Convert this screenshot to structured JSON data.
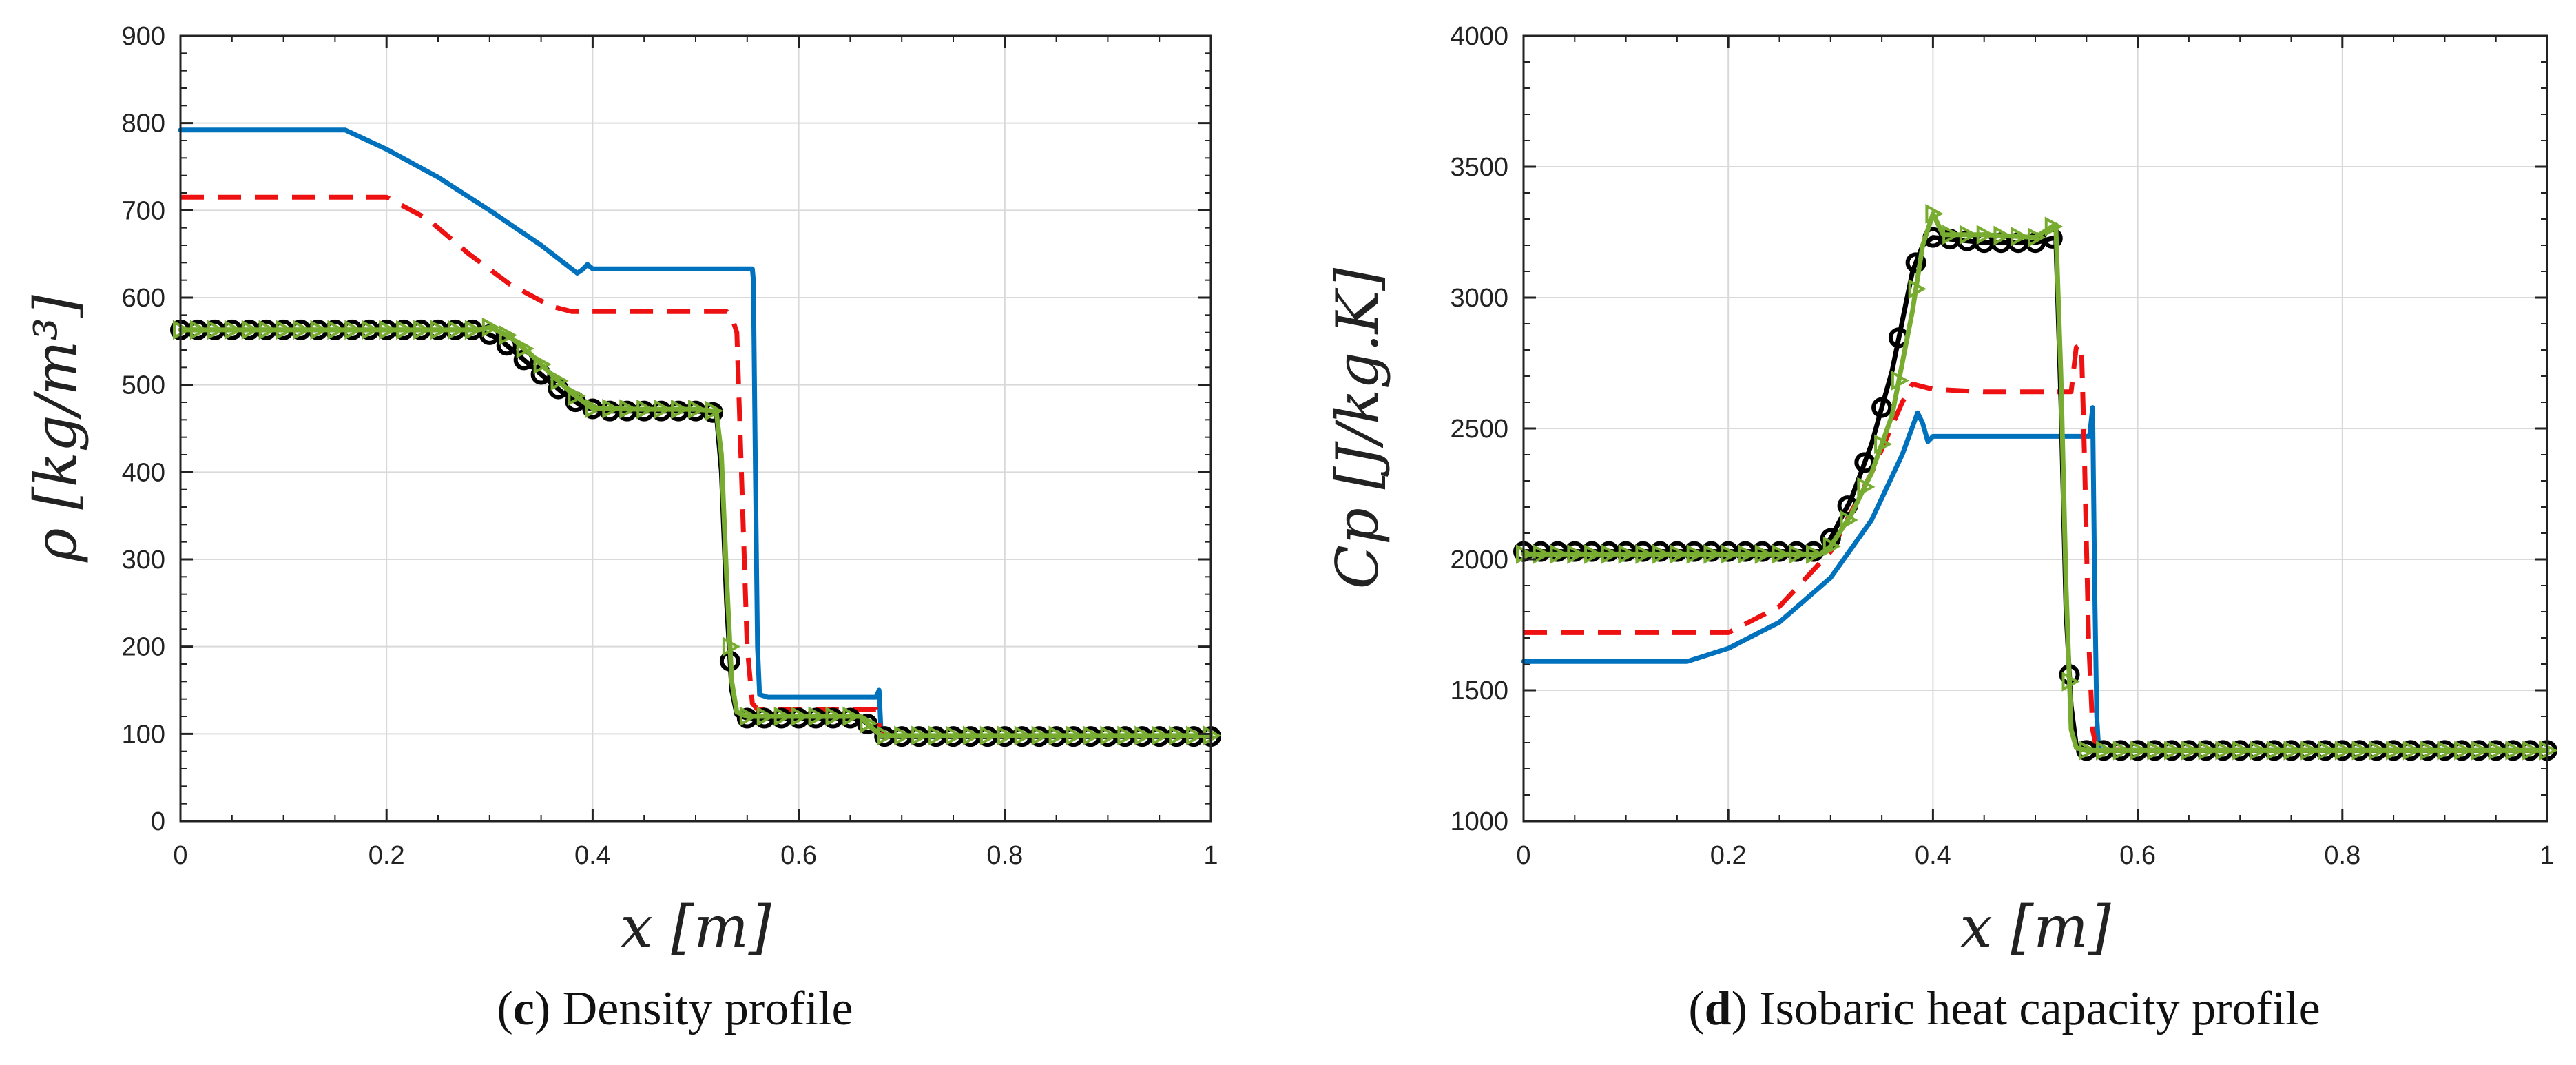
{
  "panels": [
    {
      "caption": {
        "open": "(",
        "letter": "c",
        "close": ")",
        "text": "Density profile"
      },
      "chart_data": {
        "type": "line",
        "title": "",
        "xlabel": "x [m]",
        "ylabel": "ρ [kg/m³]",
        "xlim": [
          0,
          1
        ],
        "ylim": [
          0,
          900
        ],
        "xticks": [
          0,
          0.2,
          0.4,
          0.6,
          0.8,
          1
        ],
        "xtick_labels": [
          "0",
          "0.2",
          "0.4",
          "0.6",
          "0.8",
          "1"
        ],
        "yticks": [
          0,
          100,
          200,
          300,
          400,
          500,
          600,
          700,
          800,
          900
        ],
        "ytick_labels": [
          "0",
          "100",
          "200",
          "300",
          "400",
          "500",
          "600",
          "700",
          "800",
          "900"
        ],
        "grid": true,
        "series": [
          {
            "name": "blue solid",
            "color": "#0072BD",
            "style": "solid",
            "x": [
              0,
              0.16,
              0.2,
              0.25,
              0.3,
              0.35,
              0.385,
              0.39,
              0.395,
              0.4,
              0.45,
              0.5,
              0.555,
              0.556,
              0.558,
              0.56,
              0.562,
              0.57,
              0.6,
              0.65,
              0.675,
              0.678,
              0.68,
              0.685,
              0.7,
              0.8,
              0.9,
              1
            ],
            "y": [
              792,
              792,
              770,
              738,
              700,
              660,
              628,
              632,
              638,
              633,
              633,
              633,
              633,
              620,
              400,
              200,
              145,
              142,
              142,
              142,
              142,
              150,
              100,
              97,
              97,
              97,
              97,
              97
            ]
          },
          {
            "name": "red dashed",
            "color": "#EE1111",
            "style": "dashed",
            "x": [
              0,
              0.2,
              0.24,
              0.28,
              0.32,
              0.36,
              0.38,
              0.4,
              0.45,
              0.5,
              0.53,
              0.535,
              0.54,
              0.545,
              0.55,
              0.555,
              0.56,
              0.6,
              0.65,
              0.675,
              0.68,
              0.7,
              0.8,
              0.9,
              1
            ],
            "y": [
              715,
              715,
              690,
              650,
              615,
              590,
              584,
              584,
              584,
              584,
              584,
              578,
              560,
              380,
              200,
              135,
              128,
              128,
              128,
              128,
              99,
              97,
              97,
              97,
              97
            ]
          },
          {
            "name": "black o",
            "color": "#000000",
            "style": "solid",
            "marker": "circle",
            "x": [
              0,
              0.29,
              0.31,
              0.33,
              0.35,
              0.37,
              0.39,
              0.41,
              0.5,
              0.52,
              0.525,
              0.53,
              0.535,
              0.54,
              0.55,
              0.6,
              0.66,
              0.67,
              0.68,
              0.8,
              1
            ],
            "y": [
              563,
              563,
              552,
              532,
              512,
              492,
              475,
              470,
              470,
              468,
              400,
              250,
              150,
              122,
              118,
              118,
              118,
              108,
              97,
              97,
              97
            ]
          },
          {
            "name": "green triangle",
            "color": "#77AC30",
            "style": "solid",
            "marker": "triangle",
            "x": [
              0,
              0.29,
              0.3,
              0.32,
              0.34,
              0.36,
              0.38,
              0.4,
              0.45,
              0.5,
              0.52,
              0.525,
              0.53,
              0.535,
              0.54,
              0.55,
              0.6,
              0.66,
              0.67,
              0.68,
              0.8,
              1
            ],
            "y": [
              563,
              563,
              566,
              555,
              535,
              512,
              490,
              473,
              472,
              472,
              470,
              420,
              280,
              160,
              125,
              120,
              120,
              120,
              108,
              98,
              98,
              98
            ]
          }
        ]
      }
    },
    {
      "caption": {
        "open": "(",
        "letter": "d",
        "close": ")",
        "text": "Isobaric heat capacity profile"
      },
      "chart_data": {
        "type": "line",
        "title": "",
        "xlabel": "x [m]",
        "ylabel": "Cp [J/kg.K]",
        "xlim": [
          0,
          1
        ],
        "ylim": [
          1000,
          4000
        ],
        "xticks": [
          0,
          0.2,
          0.4,
          0.6,
          0.8,
          1
        ],
        "xtick_labels": [
          "0",
          "0.2",
          "0.4",
          "0.6",
          "0.8",
          "1"
        ],
        "yticks": [
          1000,
          1500,
          2000,
          2500,
          3000,
          3500,
          4000
        ],
        "ytick_labels": [
          "1000",
          "1500",
          "2000",
          "2500",
          "3000",
          "3500",
          "4000"
        ],
        "grid": true,
        "series": [
          {
            "name": "blue solid",
            "color": "#0072BD",
            "style": "solid",
            "x": [
              0,
              0.16,
              0.2,
              0.25,
              0.3,
              0.34,
              0.37,
              0.385,
              0.39,
              0.395,
              0.4,
              0.45,
              0.5,
              0.553,
              0.556,
              0.558,
              0.56,
              0.562,
              0.57,
              0.6,
              0.8,
              1
            ],
            "y": [
              1610,
              1610,
              1660,
              1760,
              1930,
              2150,
              2400,
              2560,
              2520,
              2450,
              2470,
              2470,
              2470,
              2470,
              2580,
              1900,
              1400,
              1272,
              1270,
              1270,
              1270,
              1270
            ]
          },
          {
            "name": "red dashed",
            "color": "#EE1111",
            "style": "dashed",
            "x": [
              0,
              0.2,
              0.25,
              0.3,
              0.34,
              0.37,
              0.38,
              0.4,
              0.45,
              0.5,
              0.535,
              0.54,
              0.545,
              0.548,
              0.552,
              0.556,
              0.56,
              0.6,
              0.8,
              1
            ],
            "y": [
              1720,
              1720,
              1820,
              2030,
              2330,
              2600,
              2670,
              2650,
              2640,
              2640,
              2640,
              2810,
              2820,
              2400,
              1700,
              1350,
              1272,
              1270,
              1270,
              1270
            ]
          },
          {
            "name": "black o",
            "color": "#000000",
            "style": "solid",
            "marker": "circle",
            "x": [
              0,
              0.29,
              0.3,
              0.32,
              0.34,
              0.36,
              0.38,
              0.39,
              0.4,
              0.45,
              0.5,
              0.52,
              0.525,
              0.53,
              0.535,
              0.54,
              0.55,
              0.6,
              0.8,
              1
            ],
            "y": [
              2030,
              2030,
              2080,
              2230,
              2440,
              2720,
              3100,
              3200,
              3230,
              3210,
              3210,
              3230,
              2600,
              1800,
              1440,
              1290,
              1270,
              1270,
              1270,
              1270
            ]
          },
          {
            "name": "green triangle",
            "color": "#77AC30",
            "style": "solid",
            "marker": "triangle",
            "x": [
              0,
              0.29,
              0.3,
              0.32,
              0.34,
              0.36,
              0.38,
              0.39,
              0.4,
              0.41,
              0.45,
              0.5,
              0.52,
              0.525,
              0.53,
              0.535,
              0.54,
              0.55,
              0.6,
              0.8,
              1
            ],
            "y": [
              2020,
              2020,
              2050,
              2170,
              2330,
              2550,
              2950,
              3200,
              3320,
              3240,
              3240,
              3230,
              3280,
              2700,
              1900,
              1350,
              1280,
              1270,
              1270,
              1270,
              1270
            ]
          }
        ]
      }
    }
  ]
}
